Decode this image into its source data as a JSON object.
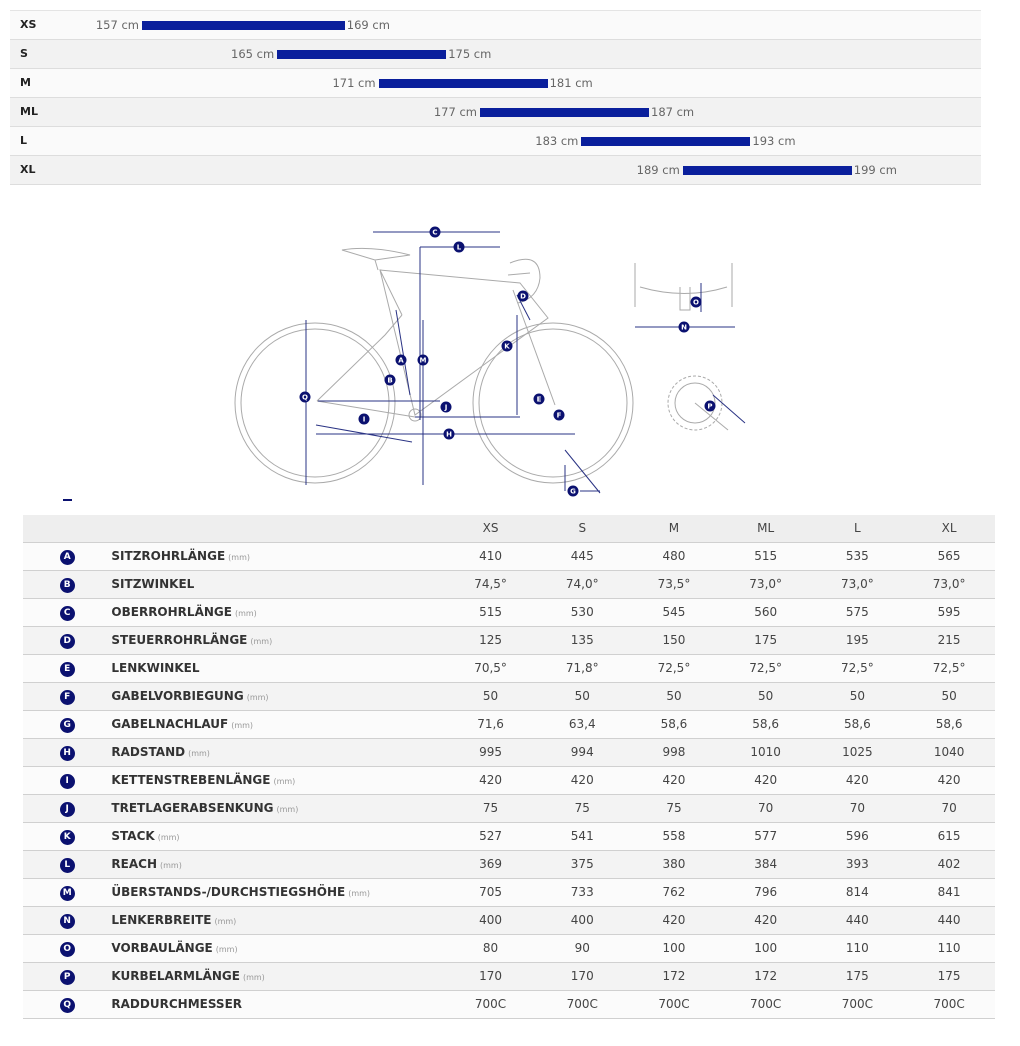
{
  "rider_height": {
    "unit": "cm",
    "rows": [
      {
        "size": "XS",
        "min": 157,
        "max": 169
      },
      {
        "size": "S",
        "min": 165,
        "max": 175
      },
      {
        "size": "M",
        "min": 171,
        "max": 181
      },
      {
        "size": "ML",
        "min": 177,
        "max": 187
      },
      {
        "size": "L",
        "min": 183,
        "max": 193
      },
      {
        "size": "XL",
        "min": 189,
        "max": 199
      }
    ]
  },
  "colors": {
    "bar": "#0a1f9c",
    "marker": "#0b1170"
  },
  "geometry": {
    "sizes": [
      "XS",
      "S",
      "M",
      "ML",
      "L",
      "XL"
    ],
    "rows": [
      {
        "letter": "A",
        "name": "SITZROHRLÄNGE",
        "unit": "(mm)",
        "values": [
          "410",
          "445",
          "480",
          "515",
          "535",
          "565"
        ]
      },
      {
        "letter": "B",
        "name": "SITZWINKEL",
        "unit": "",
        "values": [
          "74,5°",
          "74,0°",
          "73,5°",
          "73,0°",
          "73,0°",
          "73,0°"
        ]
      },
      {
        "letter": "C",
        "name": "OBERROHRLÄNGE",
        "unit": "(mm)",
        "values": [
          "515",
          "530",
          "545",
          "560",
          "575",
          "595"
        ]
      },
      {
        "letter": "D",
        "name": "STEUERROHRLÄNGE",
        "unit": "(mm)",
        "values": [
          "125",
          "135",
          "150",
          "175",
          "195",
          "215"
        ]
      },
      {
        "letter": "E",
        "name": "LENKWINKEL",
        "unit": "",
        "values": [
          "70,5°",
          "71,8°",
          "72,5°",
          "72,5°",
          "72,5°",
          "72,5°"
        ]
      },
      {
        "letter": "F",
        "name": "GABELVORBIEGUNG",
        "unit": "(mm)",
        "values": [
          "50",
          "50",
          "50",
          "50",
          "50",
          "50"
        ]
      },
      {
        "letter": "G",
        "name": "GABELNACHLAUF",
        "unit": "(mm)",
        "values": [
          "71,6",
          "63,4",
          "58,6",
          "58,6",
          "58,6",
          "58,6"
        ]
      },
      {
        "letter": "H",
        "name": "RADSTAND",
        "unit": "(mm)",
        "values": [
          "995",
          "994",
          "998",
          "1010",
          "1025",
          "1040"
        ]
      },
      {
        "letter": "I",
        "name": "KETTENSTREBENLÄNGE",
        "unit": "(mm)",
        "values": [
          "420",
          "420",
          "420",
          "420",
          "420",
          "420"
        ]
      },
      {
        "letter": "J",
        "name": "TRETLAGERABSENKUNG",
        "unit": "(mm)",
        "values": [
          "75",
          "75",
          "75",
          "70",
          "70",
          "70"
        ]
      },
      {
        "letter": "K",
        "name": "STACK",
        "unit": "(mm)",
        "values": [
          "527",
          "541",
          "558",
          "577",
          "596",
          "615"
        ]
      },
      {
        "letter": "L",
        "name": "REACH",
        "unit": "(mm)",
        "values": [
          "369",
          "375",
          "380",
          "384",
          "393",
          "402"
        ]
      },
      {
        "letter": "M",
        "name": "ÜBERSTANDS-/DURCHSTIEGSHÖHE",
        "unit": "(mm)",
        "values": [
          "705",
          "733",
          "762",
          "796",
          "814",
          "841"
        ]
      },
      {
        "letter": "N",
        "name": "LENKERBREITE",
        "unit": "(mm)",
        "values": [
          "400",
          "400",
          "420",
          "420",
          "440",
          "440"
        ]
      },
      {
        "letter": "O",
        "name": "VORBAULÄNGE",
        "unit": "(mm)",
        "values": [
          "80",
          "90",
          "100",
          "100",
          "110",
          "110"
        ]
      },
      {
        "letter": "P",
        "name": "KURBELARMLÄNGE",
        "unit": "(mm)",
        "values": [
          "170",
          "170",
          "172",
          "172",
          "175",
          "175"
        ]
      },
      {
        "letter": "Q",
        "name": "RADDURCHMESSER",
        "unit": "",
        "values": [
          "700C",
          "700C",
          "700C",
          "700C",
          "700C",
          "700C"
        ]
      }
    ]
  }
}
